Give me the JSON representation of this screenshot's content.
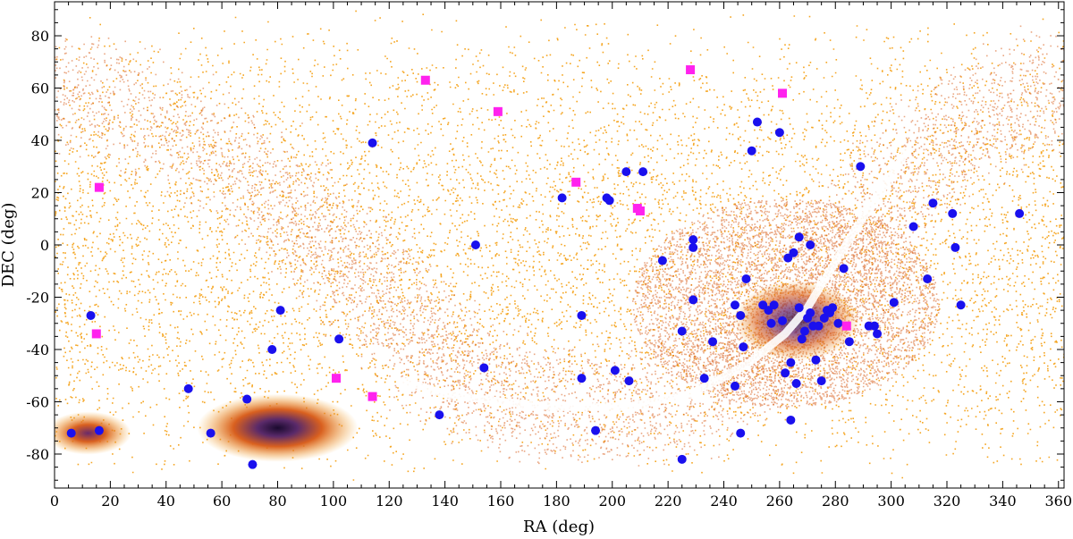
{
  "chart_data": {
    "type": "scatter",
    "xlabel": "RA (deg)",
    "ylabel": "DEC (deg)",
    "xlim": [
      0,
      362
    ],
    "ylim": [
      -93,
      93
    ],
    "xticks": [
      0,
      20,
      40,
      60,
      80,
      100,
      120,
      140,
      160,
      180,
      200,
      220,
      240,
      260,
      280,
      300,
      320,
      340,
      360
    ],
    "yticks": [
      -80,
      -60,
      -40,
      -20,
      0,
      20,
      40,
      60,
      80
    ],
    "colors": {
      "background_stars": "#f5a623",
      "dense_stars": "#d9601f",
      "core_stars": "#3a1a5a",
      "blue_markers": "#1a10ee",
      "magenta_markers": "#ff22ee"
    },
    "series": [
      {
        "name": "blue circles",
        "marker": "circle",
        "points": [
          [
            6,
            -72
          ],
          [
            16,
            -71
          ],
          [
            13,
            -27
          ],
          [
            48,
            -55
          ],
          [
            56,
            -72
          ],
          [
            69,
            -59
          ],
          [
            71,
            -84
          ],
          [
            78,
            -40
          ],
          [
            81,
            -25
          ],
          [
            102,
            -36
          ],
          [
            114,
            39
          ],
          [
            138,
            -65
          ],
          [
            151,
            0
          ],
          [
            154,
            -47
          ],
          [
            182,
            18
          ],
          [
            189,
            -27
          ],
          [
            189,
            -51
          ],
          [
            194,
            -71
          ],
          [
            198,
            18
          ],
          [
            199,
            17
          ],
          [
            201,
            -48
          ],
          [
            205,
            28
          ],
          [
            206,
            -52
          ],
          [
            211,
            28
          ],
          [
            218,
            -6
          ],
          [
            225,
            -33
          ],
          [
            225,
            -82
          ],
          [
            229,
            -1
          ],
          [
            229,
            2
          ],
          [
            229,
            -21
          ],
          [
            233,
            -51
          ],
          [
            236,
            -37
          ],
          [
            244,
            -54
          ],
          [
            244,
            -23
          ],
          [
            246,
            -27
          ],
          [
            246,
            -72
          ],
          [
            247,
            -39
          ],
          [
            248,
            -13
          ],
          [
            250,
            36
          ],
          [
            252,
            47
          ],
          [
            254,
            -23
          ],
          [
            256,
            -25
          ],
          [
            257,
            -30
          ],
          [
            258,
            -23
          ],
          [
            260,
            43
          ],
          [
            261,
            -29
          ],
          [
            262,
            -49
          ],
          [
            263,
            -5
          ],
          [
            264,
            -67
          ],
          [
            264,
            -45
          ],
          [
            265,
            -3
          ],
          [
            266,
            -53
          ],
          [
            267,
            3
          ],
          [
            267,
            -24
          ],
          [
            268,
            -36
          ],
          [
            269,
            -33
          ],
          [
            270,
            -28
          ],
          [
            271,
            0
          ],
          [
            271,
            -26
          ],
          [
            272,
            -31
          ],
          [
            273,
            -44
          ],
          [
            274,
            -31
          ],
          [
            275,
            -52
          ],
          [
            276,
            -28
          ],
          [
            277,
            -25
          ],
          [
            278,
            -26
          ],
          [
            279,
            -24
          ],
          [
            281,
            -30
          ],
          [
            283,
            -9
          ],
          [
            285,
            -37
          ],
          [
            289,
            30
          ],
          [
            292,
            -31
          ],
          [
            294,
            -31
          ],
          [
            295,
            -34
          ],
          [
            301,
            -22
          ],
          [
            308,
            7
          ],
          [
            313,
            -13
          ],
          [
            315,
            16
          ],
          [
            322,
            12
          ],
          [
            323,
            -1
          ],
          [
            325,
            -23
          ],
          [
            346,
            12
          ]
        ]
      },
      {
        "name": "magenta squares",
        "marker": "square",
        "points": [
          [
            16,
            22
          ],
          [
            15,
            -34
          ],
          [
            101,
            -51
          ],
          [
            114,
            -58
          ],
          [
            133,
            63
          ],
          [
            159,
            51
          ],
          [
            187,
            24
          ],
          [
            209,
            14
          ],
          [
            210,
            13
          ],
          [
            228,
            67
          ],
          [
            261,
            58
          ],
          [
            284,
            -31
          ]
        ]
      }
    ]
  }
}
